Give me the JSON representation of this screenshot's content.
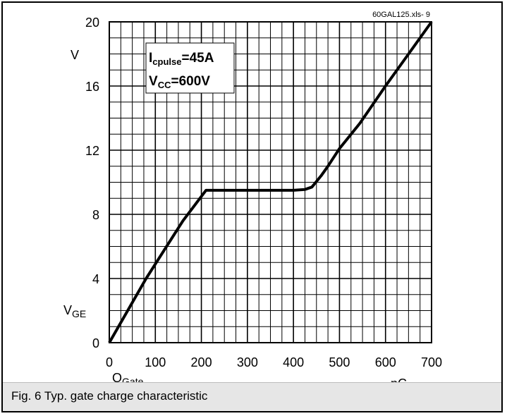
{
  "chart_data": {
    "type": "line",
    "x_axis": {
      "range": [
        0,
        700
      ],
      "ticks": [
        0,
        100,
        200,
        300,
        400,
        500,
        600,
        700
      ],
      "tick_labels": [
        "0",
        "100",
        "200",
        "300",
        "400",
        "500",
        "600",
        "700"
      ],
      "label_main": "Q",
      "label_sub": "Gate",
      "unit": "nC",
      "minor_step": 25
    },
    "y_axis": {
      "range": [
        0,
        20
      ],
      "ticks": [
        0,
        4,
        8,
        12,
        16,
        20
      ],
      "tick_labels": [
        "0",
        "4",
        "8",
        "12",
        "16",
        "20"
      ],
      "label_main": "V",
      "label_sub": "GE",
      "unit": "V",
      "minor_step": 1
    },
    "grid": true,
    "series": [
      {
        "color": "#000000",
        "x": [
          0,
          40,
          80,
          120,
          160,
          210,
          250,
          300,
          350,
          400,
          425,
          440,
          460,
          475,
          500,
          545,
          600,
          650,
          700
        ],
        "y": [
          0,
          2.0,
          4.0,
          5.8,
          7.6,
          9.5,
          9.5,
          9.5,
          9.5,
          9.5,
          9.55,
          9.7,
          10.4,
          11.0,
          12.1,
          13.7,
          16.0,
          18.0,
          20.0
        ]
      }
    ],
    "annotation": {
      "line1_main": "I",
      "line1_sub": "cpulse",
      "line1_rest": "=45A",
      "line2_main": "V",
      "line2_sub": "CC",
      "line2_rest": "=600V"
    },
    "source_note": "60GAL125.xls- 9"
  },
  "caption": "Fig. 6 Typ. gate charge characteristic"
}
